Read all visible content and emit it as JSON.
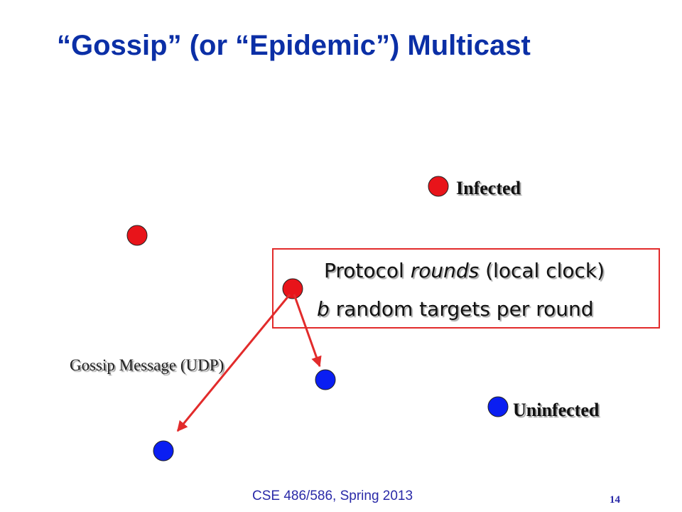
{
  "slide": {
    "title": "“Gossip” (or “Epidemic”) Multicast",
    "footer": "CSE 486/586, Spring 2013",
    "page_number": "14"
  },
  "legend": {
    "infected_label": "Infected",
    "uninfected_label": "Uninfected"
  },
  "protocol_box": {
    "line1_pre": "Protocol ",
    "line1_em": "rounds",
    "line1_post": " (local clock)",
    "line2_em": "b",
    "line2_post": " random targets per round"
  },
  "gossip_message_label": "Gossip Message (UDP)",
  "colors": {
    "title": "#0b2fa6",
    "infected": "#e8141a",
    "uninfected": "#0a1ef2",
    "arrow": "#e22b2b",
    "box_border": "#e22b2b",
    "footer": "#2a2aa8"
  }
}
